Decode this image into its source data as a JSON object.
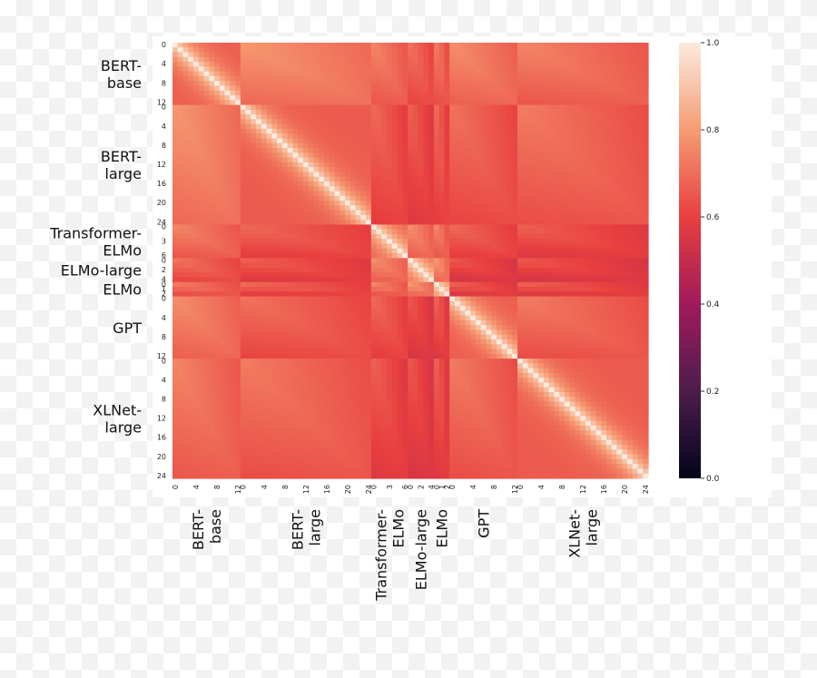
{
  "chart_data": {
    "type": "heatmap",
    "title": "",
    "groups": [
      {
        "name": "BERT-\nbase",
        "label_lines": [
          "BERT-",
          "base"
        ],
        "size": 13,
        "tick_labels": [
          "0",
          "4",
          "8",
          "12"
        ],
        "tick_step": 4
      },
      {
        "name": "BERT-\nlarge",
        "label_lines": [
          "BERT-",
          "large"
        ],
        "size": 25,
        "tick_labels": [
          "0",
          "4",
          "8",
          "12",
          "16",
          "20",
          "24"
        ],
        "tick_step": 4
      },
      {
        "name": "Transformer-\nELMo",
        "label_lines": [
          "Transformer-",
          "ELMo"
        ],
        "size": 7,
        "tick_labels": [
          "0",
          "3",
          "6"
        ],
        "tick_step": 3
      },
      {
        "name": "ELMo-large",
        "label_lines": [
          "ELMo-large"
        ],
        "size": 5,
        "tick_labels": [
          "0",
          "2",
          "4"
        ],
        "tick_step": 2
      },
      {
        "name": "ELMo",
        "label_lines": [
          "ELMo"
        ],
        "size": 3,
        "tick_labels": [
          "0",
          "1",
          "2"
        ],
        "tick_step": 1
      },
      {
        "name": "GPT",
        "label_lines": [
          "GPT"
        ],
        "size": 13,
        "tick_labels": [
          "0",
          "4",
          "8",
          "12"
        ],
        "tick_step": 4
      },
      {
        "name": "XLNet-\nlarge",
        "label_lines": [
          "XLNet-",
          "large"
        ],
        "size": 25,
        "tick_labels": [
          "0",
          "4",
          "8",
          "12",
          "16",
          "20",
          "24"
        ],
        "tick_step": 4
      }
    ],
    "group_similarity": [
      [
        0.85,
        0.72,
        0.68,
        0.64,
        0.66,
        0.7,
        0.68
      ],
      [
        0.72,
        0.85,
        0.62,
        0.6,
        0.62,
        0.64,
        0.66
      ],
      [
        0.68,
        0.62,
        0.85,
        0.7,
        0.68,
        0.62,
        0.6
      ],
      [
        0.64,
        0.6,
        0.7,
        0.85,
        0.72,
        0.58,
        0.58
      ],
      [
        0.66,
        0.62,
        0.68,
        0.72,
        0.85,
        0.6,
        0.6
      ],
      [
        0.7,
        0.64,
        0.62,
        0.58,
        0.6,
        0.85,
        0.66
      ],
      [
        0.68,
        0.66,
        0.6,
        0.58,
        0.6,
        0.66,
        0.85
      ]
    ],
    "diagonal_value": 1.0,
    "colorbar": {
      "ticks": [
        "0.0",
        "0.2",
        "0.4",
        "0.6",
        "0.8",
        "1.0"
      ],
      "range": [
        0.0,
        1.0
      ],
      "colors": [
        "#03051a",
        "#4c1d4b",
        "#a11a5b",
        "#e83f3f",
        "#f69c73",
        "#faebdd"
      ]
    },
    "grid": false
  }
}
